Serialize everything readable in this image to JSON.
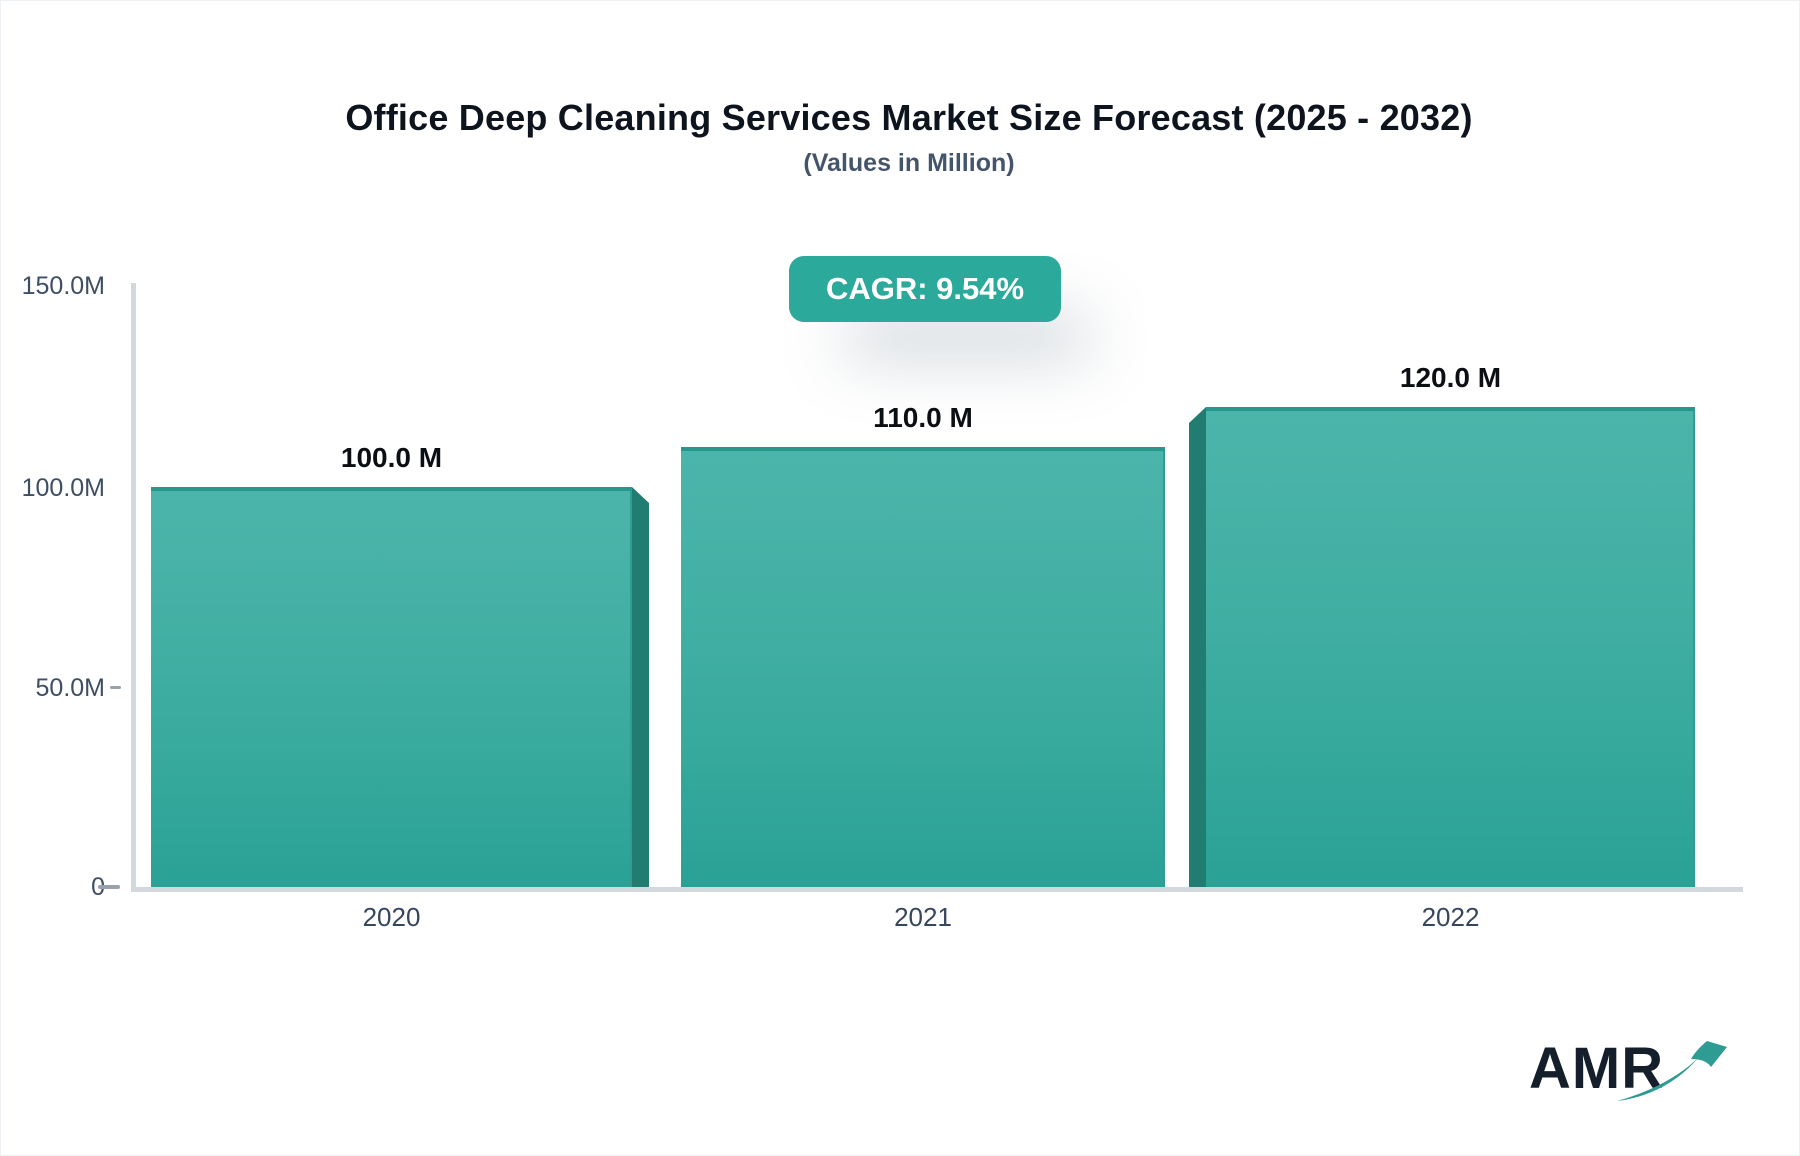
{
  "header": {
    "title": "Office Deep Cleaning Services Market Size Forecast (2025 - 2032)",
    "subtitle": "(Values in Million)",
    "cagr_badge": "CAGR: 9.54%"
  },
  "chart_data": {
    "type": "bar",
    "title": "Office Deep Cleaning Services Market Size Forecast (2025 - 2032)",
    "subtitle": "(Values in Million)",
    "categories": [
      "2020",
      "2021",
      "2022"
    ],
    "values": [
      100,
      110,
      120
    ],
    "value_labels": [
      "100.0 M",
      "110.0 M",
      "120.0 M"
    ],
    "cagr_percent": "9.54%",
    "xlabel": "",
    "ylabel": "",
    "ylim": [
      0,
      150
    ],
    "yticks": [
      {
        "value": 150,
        "label": "150.0M"
      },
      {
        "value": 100,
        "label": "100.0M"
      },
      {
        "value": 50,
        "label": "50.0M"
      },
      {
        "value": 0,
        "label": "0"
      }
    ],
    "grid": false,
    "legend": false,
    "bar_style": "3d-extruded-gradient"
  },
  "colors": {
    "bar_gradient_top": "#4cb5ab",
    "bar_gradient_bottom": "#2aa195",
    "bar_top_edge": "#27978d",
    "bar_side_panel": "#217c72",
    "badge_background": "#2ba99b",
    "badge_text": "#ffffff",
    "axis_line": "#d3d7de",
    "axis_text": "#3e4e63",
    "title_text": "#0e141d",
    "subtitle_text": "#44556b"
  },
  "logo": {
    "text": "AMR",
    "icon": "trend-up-arrow-icon"
  }
}
